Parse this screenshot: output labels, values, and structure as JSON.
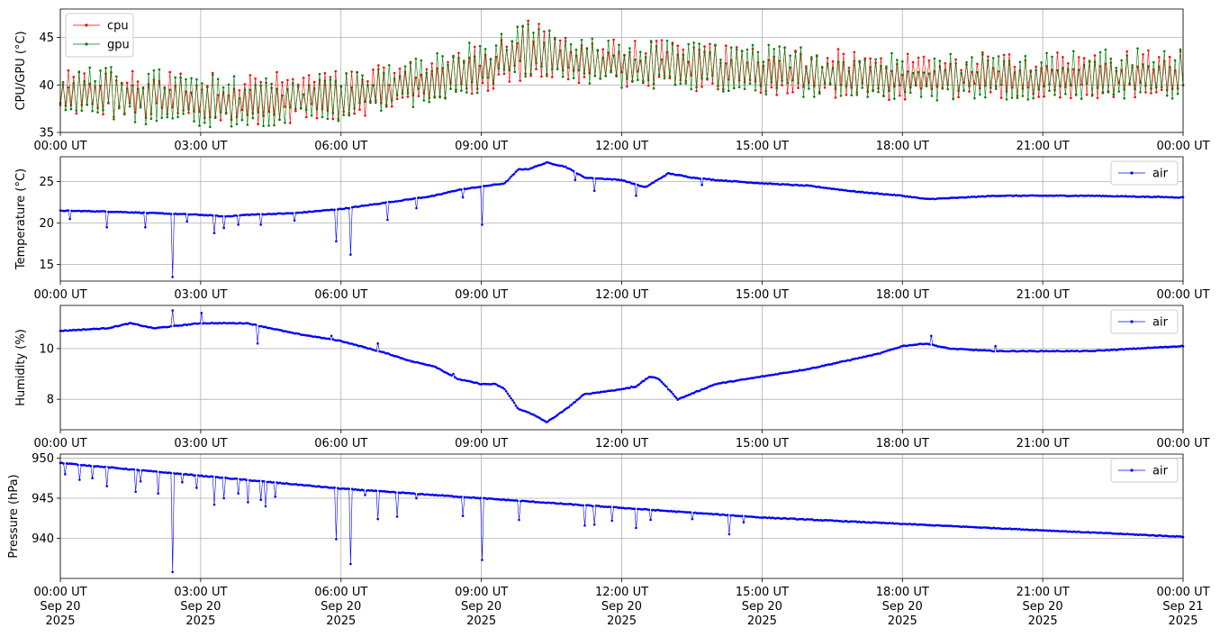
{
  "chart_data": [
    {
      "type": "line",
      "ylabel": "CPU/GPU (°C)",
      "xlim": [
        "2025-09-20T00:00Z",
        "2025-09-21T00:00Z"
      ],
      "ylim": [
        35,
        48
      ],
      "yticks": [
        35,
        40,
        45
      ],
      "xticks": [
        {
          "label": "00:00 UT",
          "hour": 0
        },
        {
          "label": "03:00 UT",
          "hour": 3
        },
        {
          "label": "06:00 UT",
          "hour": 6
        },
        {
          "label": "09:00 UT",
          "hour": 9
        },
        {
          "label": "12:00 UT",
          "hour": 12
        },
        {
          "label": "15:00 UT",
          "hour": 15
        },
        {
          "label": "18:00 UT",
          "hour": 18
        },
        {
          "label": "21:00 UT",
          "hour": 21
        },
        {
          "label": "00:00 UT",
          "hour": 24
        }
      ],
      "grid": true,
      "legend": "upper-left",
      "series": [
        {
          "name": "cpu",
          "color": "#ff0000",
          "hours": [
            0,
            1,
            2,
            3,
            4,
            5,
            6,
            7,
            8,
            9,
            10,
            11,
            12,
            13,
            14,
            15,
            16,
            17,
            18,
            19,
            20,
            21,
            22,
            23,
            24
          ],
          "low": [
            36.8,
            36.5,
            36.2,
            35.8,
            35.8,
            36.0,
            36.3,
            37.2,
            38.2,
            39.0,
            40.5,
            40.0,
            39.8,
            39.5,
            39.2,
            38.9,
            38.7,
            38.5,
            38.3,
            38.5,
            38.6,
            38.6,
            38.6,
            38.6,
            38.6
          ],
          "high": [
            41.5,
            41.7,
            41.8,
            41.4,
            41.4,
            41.5,
            41.6,
            42.2,
            43.0,
            44.5,
            46.8,
            45.5,
            44.8,
            44.7,
            44.4,
            44.2,
            44.1,
            43.6,
            43.3,
            43.4,
            43.5,
            43.6,
            43.6,
            43.7,
            43.8
          ]
        },
        {
          "name": "gpu",
          "color": "#008000",
          "hours": [
            0,
            1,
            2,
            3,
            4,
            5,
            6,
            7,
            8,
            9,
            10,
            11,
            12,
            13,
            14,
            15,
            16,
            17,
            18,
            19,
            20,
            21,
            22,
            23,
            24
          ],
          "low": [
            36.5,
            36.2,
            35.8,
            35.5,
            35.6,
            35.8,
            36.2,
            37.2,
            38.0,
            39.0,
            41.0,
            40.0,
            39.6,
            39.5,
            39.2,
            39.0,
            38.7,
            38.5,
            38.2,
            38.3,
            38.4,
            38.5,
            38.5,
            38.5,
            38.5
          ],
          "high": [
            41.8,
            42.0,
            41.8,
            41.2,
            41.0,
            41.2,
            41.5,
            42.3,
            43.5,
            45.0,
            46.5,
            45.0,
            44.8,
            44.8,
            44.5,
            44.3,
            44.2,
            43.7,
            43.6,
            43.5,
            43.6,
            43.7,
            43.8,
            43.9,
            43.9
          ]
        }
      ]
    },
    {
      "type": "line",
      "ylabel": "Temperature (°C)",
      "xlim": [
        "2025-09-20T00:00Z",
        "2025-09-21T00:00Z"
      ],
      "ylim": [
        13,
        28
      ],
      "yticks": [
        15,
        20,
        25
      ],
      "xticks": [
        {
          "label": "00:00 UT",
          "hour": 0
        },
        {
          "label": "03:00 UT",
          "hour": 3
        },
        {
          "label": "06:00 UT",
          "hour": 6
        },
        {
          "label": "09:00 UT",
          "hour": 9
        },
        {
          "label": "12:00 UT",
          "hour": 12
        },
        {
          "label": "15:00 UT",
          "hour": 15
        },
        {
          "label": "18:00 UT",
          "hour": 18
        },
        {
          "label": "21:00 UT",
          "hour": 21
        },
        {
          "label": "00:00 UT",
          "hour": 24
        }
      ],
      "grid": true,
      "legend": "upper-right",
      "series": [
        {
          "name": "air",
          "color": "#0000ff",
          "hours": [
            0,
            1,
            2,
            3,
            3.5,
            4,
            5,
            6,
            7,
            8,
            8.5,
            9,
            9.5,
            9.8,
            10,
            10.4,
            10.8,
            11.2,
            12,
            12.5,
            13,
            13.5,
            14,
            15,
            16,
            17,
            18,
            18.5,
            19,
            20,
            21,
            22,
            23,
            24
          ],
          "values": [
            21.5,
            21.4,
            21.2,
            21.0,
            20.8,
            21.0,
            21.2,
            21.7,
            22.5,
            23.3,
            24.0,
            24.4,
            24.8,
            26.5,
            26.5,
            27.3,
            26.8,
            25.5,
            25.2,
            24.3,
            26.0,
            25.5,
            25.2,
            24.8,
            24.5,
            23.8,
            23.3,
            22.9,
            23.0,
            23.3,
            23.3,
            23.3,
            23.2,
            23.1
          ],
          "dips": [
            [
              0.2,
              20.5
            ],
            [
              1.0,
              19.5
            ],
            [
              1.8,
              19.5
            ],
            [
              2.4,
              13.5
            ],
            [
              2.7,
              20.2
            ],
            [
              3.3,
              18.8
            ],
            [
              3.5,
              19.4
            ],
            [
              3.8,
              19.8
            ],
            [
              4.3,
              19.8
            ],
            [
              5.0,
              20.3
            ],
            [
              5.9,
              17.8
            ],
            [
              6.2,
              16.2
            ],
            [
              7.0,
              20.4
            ],
            [
              7.6,
              21.8
            ],
            [
              8.6,
              23.1
            ],
            [
              9.0,
              19.8
            ],
            [
              11.0,
              25.2
            ],
            [
              11.4,
              23.9
            ],
            [
              12.3,
              23.3
            ],
            [
              13.7,
              24.6
            ]
          ]
        }
      ]
    },
    {
      "type": "line",
      "ylabel": "Humidity (%)",
      "xlim": [
        "2025-09-20T00:00Z",
        "2025-09-21T00:00Z"
      ],
      "ylim": [
        6.8,
        11.7
      ],
      "yticks": [
        8,
        10
      ],
      "xticks": [
        {
          "label": "00:00 UT",
          "hour": 0
        },
        {
          "label": "03:00 UT",
          "hour": 3
        },
        {
          "label": "06:00 UT",
          "hour": 6
        },
        {
          "label": "09:00 UT",
          "hour": 9
        },
        {
          "label": "12:00 UT",
          "hour": 12
        },
        {
          "label": "15:00 UT",
          "hour": 15
        },
        {
          "label": "18:00 UT",
          "hour": 18
        },
        {
          "label": "21:00 UT",
          "hour": 21
        },
        {
          "label": "00:00 UT",
          "hour": 24
        }
      ],
      "grid": true,
      "legend": "upper-right",
      "series": [
        {
          "name": "air",
          "color": "#0000ff",
          "hours": [
            0,
            1,
            1.5,
            2,
            3,
            4,
            5,
            6,
            7,
            7.5,
            8,
            8.5,
            9,
            9.3,
            9.5,
            9.8,
            10,
            10.4,
            10.8,
            11.2,
            12,
            12.3,
            12.6,
            12.8,
            13.2,
            14,
            15,
            16,
            17,
            17.5,
            18,
            18.5,
            19,
            20,
            21,
            22,
            23,
            24
          ],
          "values": [
            10.7,
            10.8,
            11.0,
            10.8,
            11.0,
            11.0,
            10.6,
            10.3,
            9.8,
            9.5,
            9.3,
            8.8,
            8.6,
            8.6,
            8.4,
            7.6,
            7.5,
            7.1,
            7.6,
            8.2,
            8.4,
            8.5,
            8.9,
            8.8,
            8.0,
            8.6,
            8.9,
            9.2,
            9.6,
            9.8,
            10.1,
            10.2,
            10.0,
            9.9,
            9.9,
            9.9,
            10.0,
            10.1
          ],
          "dips": [
            [
              2.4,
              11.5
            ],
            [
              3.0,
              11.4
            ],
            [
              4.2,
              10.2
            ],
            [
              5.8,
              10.5
            ],
            [
              6.8,
              10.2
            ],
            [
              8.4,
              9.0
            ],
            [
              18.6,
              10.5
            ],
            [
              20.0,
              10.1
            ],
            [
              12.2,
              8.5
            ]
          ]
        }
      ]
    },
    {
      "type": "line",
      "ylabel": "Pressure (hPa)",
      "xlim": [
        "2025-09-20T00:00Z",
        "2025-09-21T00:00Z"
      ],
      "ylim": [
        935,
        950.5
      ],
      "yticks": [
        940,
        945,
        950
      ],
      "xticks": [
        {
          "label": "00:00 UT",
          "hour": 0,
          "date": "Sep 20",
          "year": "2025"
        },
        {
          "label": "03:00 UT",
          "hour": 3,
          "date": "Sep 20",
          "year": "2025"
        },
        {
          "label": "06:00 UT",
          "hour": 6,
          "date": "Sep 20",
          "year": "2025"
        },
        {
          "label": "09:00 UT",
          "hour": 9,
          "date": "Sep 20",
          "year": "2025"
        },
        {
          "label": "12:00 UT",
          "hour": 12,
          "date": "Sep 20",
          "year": "2025"
        },
        {
          "label": "15:00 UT",
          "hour": 15,
          "date": "Sep 20",
          "year": "2025"
        },
        {
          "label": "18:00 UT",
          "hour": 18,
          "date": "Sep 20",
          "year": "2025"
        },
        {
          "label": "21:00 UT",
          "hour": 21,
          "date": "Sep 20",
          "year": "2025"
        },
        {
          "label": "00:00 UT",
          "hour": 24,
          "date": "Sep 21",
          "year": "2025"
        }
      ],
      "grid": true,
      "legend": "upper-right",
      "series": [
        {
          "name": "air",
          "color": "#0000ff",
          "hours": [
            0,
            3,
            6,
            9,
            12,
            15,
            18,
            21,
            24
          ],
          "values": [
            949.4,
            947.8,
            946.2,
            945.0,
            943.8,
            942.6,
            941.8,
            941.0,
            940.2
          ],
          "dips": [
            [
              0.1,
              948.0
            ],
            [
              0.4,
              947.3
            ],
            [
              0.7,
              947.5
            ],
            [
              1.0,
              946.5
            ],
            [
              1.6,
              945.8
            ],
            [
              1.7,
              947.1
            ],
            [
              2.1,
              945.6
            ],
            [
              2.4,
              935.8
            ],
            [
              2.6,
              947.0
            ],
            [
              2.9,
              946.3
            ],
            [
              3.3,
              944.2
            ],
            [
              3.5,
              945.0
            ],
            [
              3.8,
              945.6
            ],
            [
              4.0,
              944.5
            ],
            [
              4.3,
              944.8
            ],
            [
              4.4,
              944.0
            ],
            [
              4.6,
              945.2
            ],
            [
              5.9,
              939.9
            ],
            [
              6.2,
              936.8
            ],
            [
              6.5,
              945.4
            ],
            [
              6.8,
              942.4
            ],
            [
              7.2,
              942.7
            ],
            [
              7.6,
              945.0
            ],
            [
              8.6,
              942.8
            ],
            [
              9.0,
              937.3
            ],
            [
              9.8,
              942.3
            ],
            [
              11.2,
              941.6
            ],
            [
              11.4,
              941.7
            ],
            [
              11.8,
              942.2
            ],
            [
              12.3,
              941.3
            ],
            [
              12.6,
              942.3
            ],
            [
              13.5,
              942.4
            ],
            [
              14.3,
              940.5
            ],
            [
              14.6,
              942.0
            ]
          ]
        }
      ]
    }
  ]
}
